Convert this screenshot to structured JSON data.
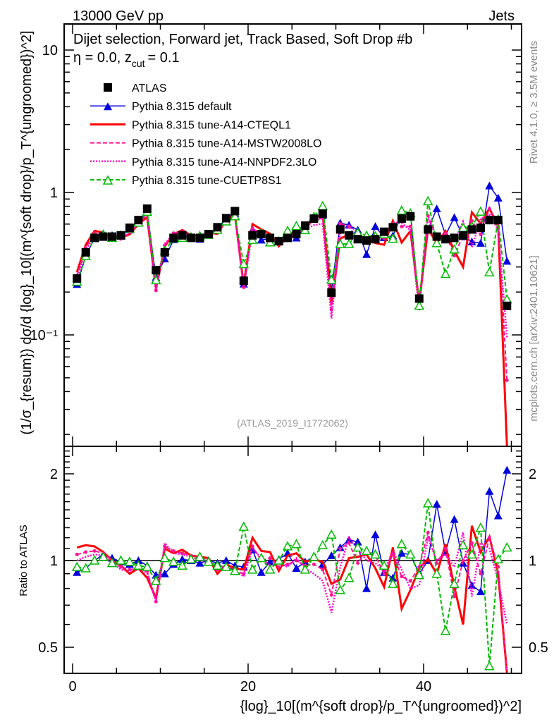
{
  "header": {
    "left": "13000 GeV pp",
    "right": "Jets"
  },
  "side": {
    "rivet": "Rivet 4.1.0, ≥ 3.5M events",
    "mcplots": "mcplots.cern.ch [arXiv:2401.10621]"
  },
  "analysis_id": "(ATLAS_2019_I1772062)",
  "chart_data": [
    {
      "type": "line",
      "title": "Dijet selection, Forward jet, Track Based, Soft Drop #b",
      "title_eta": "η = 0.0, z",
      "title_sub": "cut",
      "title_end": "= 0.1",
      "ylabel": "(1/σ_{resum}) dσ/d {log}_10[(m^{soft drop}/p_T^{ungroomed})^2]",
      "yscale": "log",
      "ylim": [
        0.0166,
        15
      ],
      "yticks": [
        {
          "v": 0.1,
          "label": "10⁻¹"
        },
        {
          "v": 1,
          "label": "1"
        },
        {
          "v": 10,
          "label": "10"
        }
      ],
      "xlim": [
        -1,
        51.2
      ],
      "legend_position": "top-left",
      "x": [
        0.5,
        1.5,
        2.5,
        3.5,
        4.5,
        5.5,
        6.5,
        7.5,
        8.5,
        9.5,
        10.5,
        11.5,
        12.5,
        13.5,
        14.5,
        15.5,
        16.5,
        17.5,
        18.5,
        19.5,
        20.5,
        21.5,
        22.5,
        23.5,
        24.5,
        25.5,
        26.5,
        27.5,
        28.5,
        29.5,
        30.5,
        31.5,
        32.5,
        33.5,
        34.5,
        35.5,
        36.5,
        37.5,
        38.5,
        39.5,
        40.5,
        41.5,
        42.5,
        43.5,
        44.5,
        45.5,
        46.5,
        47.5,
        48.5,
        49.5
      ],
      "data": {
        "name": "ATLAS",
        "color": "#000000",
        "values": [
          0.249,
          0.38,
          0.48,
          0.49,
          0.49,
          0.5,
          0.565,
          0.64,
          0.77,
          0.285,
          0.38,
          0.48,
          0.5,
          0.48,
          0.48,
          0.51,
          0.57,
          0.66,
          0.74,
          0.24,
          0.5,
          0.51,
          0.48,
          0.455,
          0.48,
          0.51,
          0.585,
          0.655,
          0.71,
          0.198,
          0.55,
          0.5,
          0.47,
          0.46,
          0.47,
          0.53,
          0.57,
          0.655,
          0.68,
          0.18,
          0.55,
          0.49,
          0.47,
          0.48,
          0.5,
          0.55,
          0.565,
          0.64,
          0.64,
          0.16
        ]
      },
      "series": [
        {
          "name": "Pythia 8.315 default",
          "color": "#0000dd",
          "style": "solid",
          "marker": "triangle-filled",
          "ratio": [
            0.91,
            0.94,
            1.0,
            1.05,
            1.02,
            0.99,
            0.97,
            1.0,
            0.96,
            0.89,
            0.9,
            0.97,
            1.01,
            1.0,
            0.98,
            1.0,
            0.98,
            1.0,
            0.96,
            0.95,
            1.09,
            0.91,
            0.99,
            1.01,
            1.06,
            0.94,
            0.99,
            1.03,
            0.97,
            1.04,
            1.11,
            1.18,
            1.16,
            0.8,
            1.23,
            0.91,
            0.87,
            1.06,
            1.05,
            0.9,
            1.0,
            1.57,
            1.07,
            1.39,
            0.98,
            0.82,
            0.78,
            1.74,
            1.43,
            2.06
          ]
        },
        {
          "name": "Pythia 8.315 tune-A14-CTEQL1",
          "color": "#ff0000",
          "style": "thick",
          "marker": "none",
          "ratio": [
            1.11,
            1.13,
            1.12,
            1.07,
            1.0,
            0.96,
            0.9,
            0.94,
            0.87,
            0.74,
            1.1,
            1.06,
            1.09,
            1.04,
            1.03,
            1.02,
            0.9,
            0.97,
            0.94,
            0.93,
            1.2,
            1.08,
            1.07,
            0.92,
            1.04,
            1.06,
            0.99,
            1.01,
            0.99,
            0.83,
            0.86,
            1.02,
            1.03,
            1.05,
            0.94,
            0.81,
            1.11,
            0.68,
            0.79,
            0.94,
            1.01,
            0.9,
            1.14,
            0.81,
            0.6,
            1.32,
            1.07,
            1.21,
            0.9,
            0.1
          ]
        },
        {
          "name": "Pythia 8.315 tune-A14-MSTW2008LO",
          "color": "#ff1493",
          "style": "dashed",
          "marker": "dot",
          "ratio": [
            1.05,
            1.07,
            1.08,
            1.06,
            1.0,
            0.95,
            0.93,
            0.94,
            0.92,
            0.72,
            1.12,
            1.08,
            1.06,
            1.04,
            1.02,
            1.01,
            0.93,
            0.95,
            0.92,
            0.9,
            1.12,
            1.0,
            1.02,
            0.95,
            0.97,
            1.0,
            0.96,
            0.97,
            0.93,
            0.76,
            1.1,
            1.15,
            0.98,
            1.08,
            1.04,
            0.9,
            1.05,
            0.88,
            0.85,
            0.95,
            1.25,
            0.98,
            1.1,
            0.75,
            1.0,
            1.15,
            0.9,
            1.2,
            0.95,
            0.3
          ]
        },
        {
          "name": "Pythia 8.315 tune-A14-NNPDF2.3LO",
          "color": "#ff00cc",
          "style": "dotted",
          "marker": "none",
          "ratio": [
            1.0,
            1.03,
            1.05,
            1.04,
            0.99,
            0.93,
            0.92,
            0.95,
            0.9,
            0.72,
            1.15,
            1.06,
            1.05,
            1.03,
            1.0,
            1.0,
            0.94,
            0.96,
            0.92,
            0.88,
            1.1,
            1.02,
            0.96,
            0.98,
            0.95,
            1.02,
            0.94,
            0.9,
            0.85,
            0.66,
            0.95,
            1.2,
            1.1,
            1.0,
            0.98,
            0.92,
            1.08,
            0.93,
            0.8,
            0.82,
            1.2,
            1.0,
            1.05,
            0.95,
            1.25,
            0.75,
            1.15,
            1.1,
            0.85,
            0.6
          ]
        },
        {
          "name": "Pythia 8.315 tune-CUETP8S1",
          "color": "#00bb00",
          "style": "dashed",
          "marker": "triangle-open",
          "ratio": [
            0.95,
            0.94,
            1.0,
            1.03,
            0.98,
            1.0,
            0.99,
            0.96,
            0.95,
            0.85,
            1.02,
            0.99,
            0.96,
            1.01,
            1.03,
            0.99,
            0.96,
            0.95,
            0.92,
            1.31,
            0.93,
            1.02,
            0.93,
            1.0,
            1.12,
            1.14,
            0.93,
            1.03,
            1.13,
            1.23,
            0.79,
            0.87,
            1.11,
            1.08,
            1.05,
            0.96,
            0.83,
            1.14,
            1.05,
            0.89,
            1.58,
            0.9,
            0.57,
            0.83,
            1.13,
            1.05,
            1.3,
            0.43,
            1.01,
            1.11
          ]
        }
      ]
    },
    {
      "type": "line",
      "ylabel": "Ratio to ATLAS",
      "xlabel": "{log}_10[(m^{soft drop}/p_T^{ungroomed})^2]",
      "yscale": "log",
      "ylim": [
        0.406,
        2.49
      ],
      "yticks": [
        {
          "v": 0.5,
          "label": "0.5"
        },
        {
          "v": 1,
          "label": "1"
        },
        {
          "v": 2,
          "label": "2"
        }
      ],
      "xticks": [
        {
          "v": 0,
          "label": "0"
        },
        {
          "v": 20,
          "label": "20"
        },
        {
          "v": 40,
          "label": "40"
        }
      ]
    }
  ]
}
